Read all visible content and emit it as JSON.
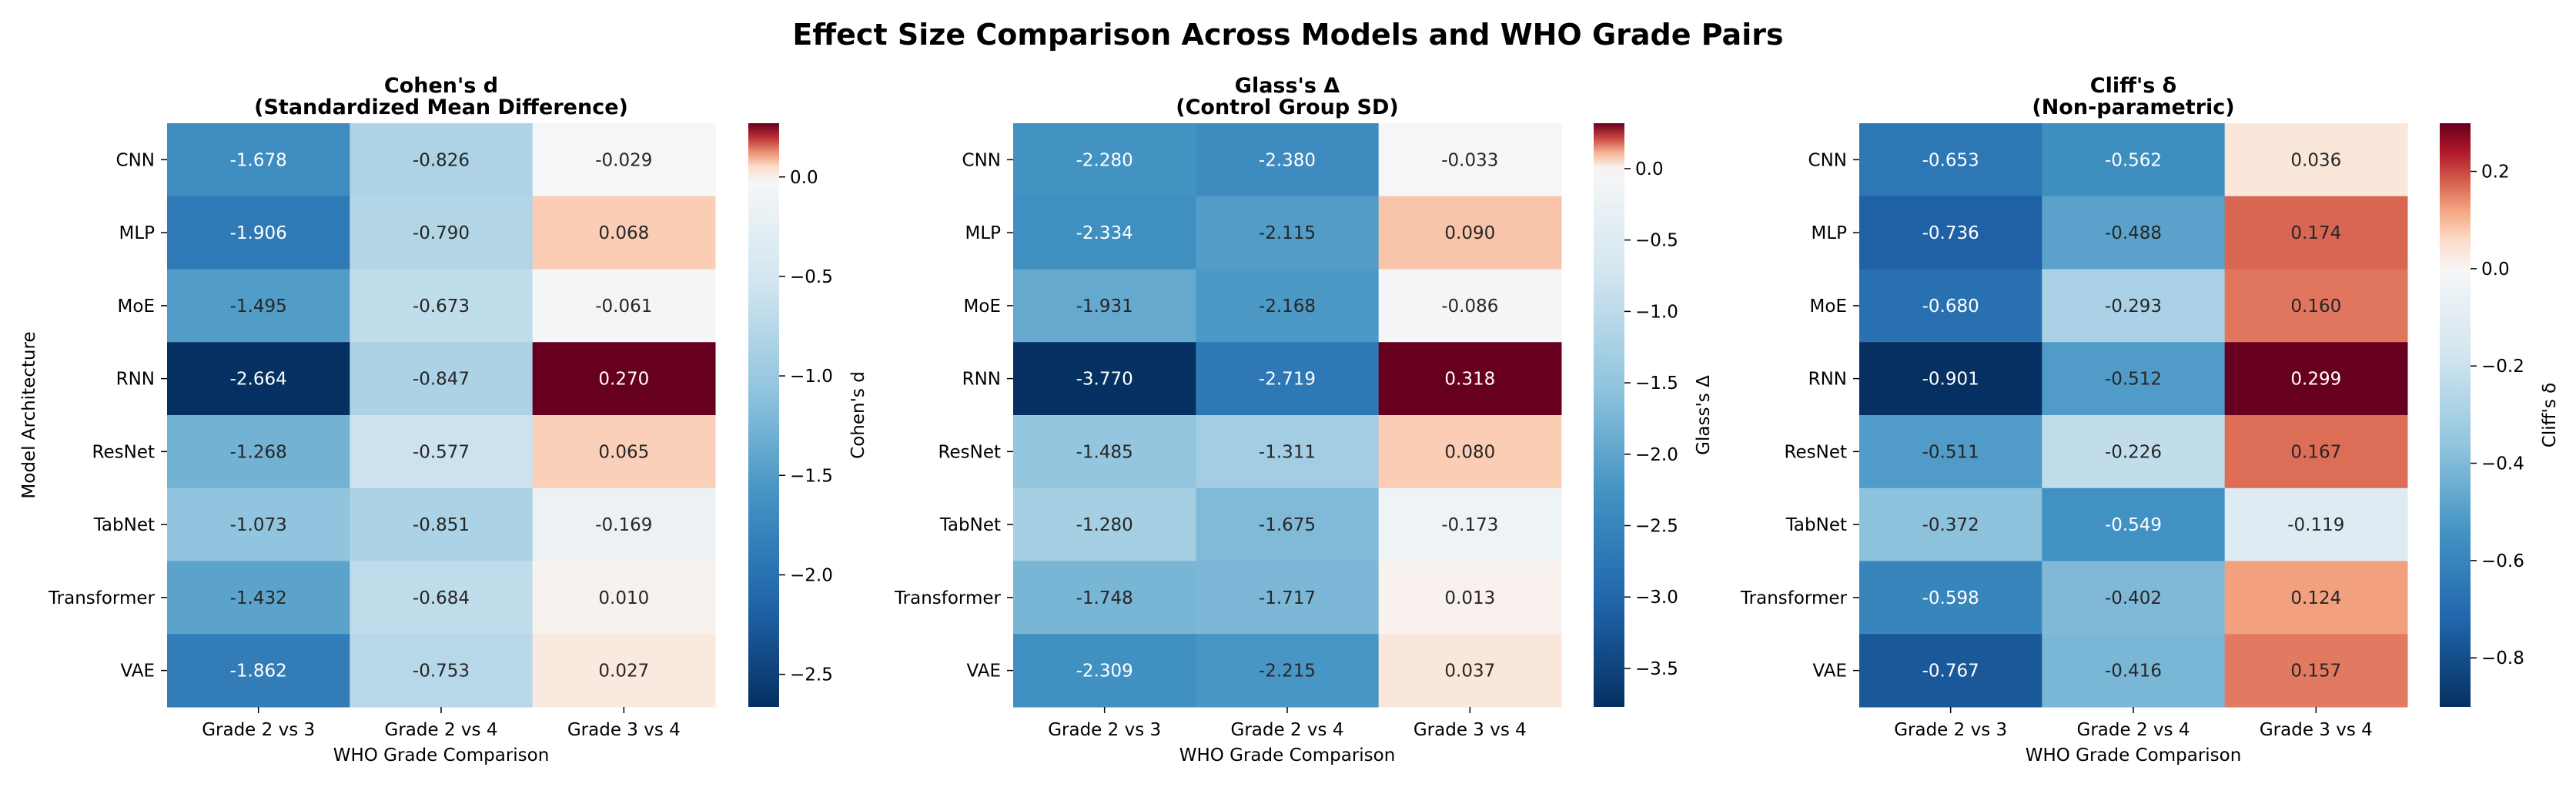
{
  "figure": {
    "suptitle": "Effect Size Comparison Across Models and WHO Grade Pairs"
  },
  "chart_data": [
    {
      "type": "heatmap",
      "title_line1": "Cohen's d",
      "title_line2": "(Standardized Mean Difference)",
      "xlabel": "WHO Grade Comparison",
      "ylabel": "Model Architecture",
      "colorbar_label": "Cohen's d",
      "colormap": "RdBu_r",
      "vmin": -2.664,
      "vmax": 0.27,
      "center": 0,
      "colorbar_ticks": [
        0.0,
        -0.5,
        -1.0,
        -1.5,
        -2.0,
        -2.5
      ],
      "colorbar_tick_labels": [
        "0.0",
        "−0.5",
        "−1.0",
        "−1.5",
        "−2.0",
        "−2.5"
      ],
      "columns": [
        "Grade 2 vs 3",
        "Grade 2 vs 4",
        "Grade 3 vs 4"
      ],
      "rows": [
        "CNN",
        "MLP",
        "MoE",
        "RNN",
        "ResNet",
        "TabNet",
        "Transformer",
        "VAE"
      ],
      "values": [
        [
          -1.678,
          -0.826,
          -0.029
        ],
        [
          -1.906,
          -0.79,
          0.068
        ],
        [
          -1.495,
          -0.673,
          -0.061
        ],
        [
          -2.664,
          -0.847,
          0.27
        ],
        [
          -1.268,
          -0.577,
          0.065
        ],
        [
          -1.073,
          -0.851,
          -0.169
        ],
        [
          -1.432,
          -0.684,
          0.01
        ],
        [
          -1.862,
          -0.753,
          0.027
        ]
      ],
      "labels": [
        [
          "-1.678",
          "-0.826",
          "-0.029"
        ],
        [
          "-1.906",
          "-0.790",
          "0.068"
        ],
        [
          "-1.495",
          "-0.673",
          "-0.061"
        ],
        [
          "-2.664",
          "-0.847",
          "0.270"
        ],
        [
          "-1.268",
          "-0.577",
          "0.065"
        ],
        [
          "-1.073",
          "-0.851",
          "-0.169"
        ],
        [
          "-1.432",
          "-0.684",
          "0.010"
        ],
        [
          "-1.862",
          "-0.753",
          "0.027"
        ]
      ]
    },
    {
      "type": "heatmap",
      "title_line1": "Glass's Δ",
      "title_line2": "(Control Group SD)",
      "xlabel": "WHO Grade Comparison",
      "ylabel": "",
      "colorbar_label": "Glass's Δ",
      "colormap": "RdBu_r",
      "vmin": -3.77,
      "vmax": 0.318,
      "center": 0,
      "colorbar_ticks": [
        0.0,
        -0.5,
        -1.0,
        -1.5,
        -2.0,
        -2.5,
        -3.0,
        -3.5
      ],
      "colorbar_tick_labels": [
        "0.0",
        "−0.5",
        "−1.0",
        "−1.5",
        "−2.0",
        "−2.5",
        "−3.0",
        "−3.5"
      ],
      "columns": [
        "Grade 2 vs 3",
        "Grade 2 vs 4",
        "Grade 3 vs 4"
      ],
      "rows": [
        "CNN",
        "MLP",
        "MoE",
        "RNN",
        "ResNet",
        "TabNet",
        "Transformer",
        "VAE"
      ],
      "values": [
        [
          -2.28,
          -2.38,
          -0.033
        ],
        [
          -2.334,
          -2.115,
          0.09
        ],
        [
          -1.931,
          -2.168,
          -0.086
        ],
        [
          -3.77,
          -2.719,
          0.318
        ],
        [
          -1.485,
          -1.311,
          0.08
        ],
        [
          -1.28,
          -1.675,
          -0.173
        ],
        [
          -1.748,
          -1.717,
          0.013
        ],
        [
          -2.309,
          -2.215,
          0.037
        ]
      ],
      "labels": [
        [
          "-2.280",
          "-2.380",
          "-0.033"
        ],
        [
          "-2.334",
          "-2.115",
          "0.090"
        ],
        [
          "-1.931",
          "-2.168",
          "-0.086"
        ],
        [
          "-3.770",
          "-2.719",
          "0.318"
        ],
        [
          "-1.485",
          "-1.311",
          "0.080"
        ],
        [
          "-1.280",
          "-1.675",
          "-0.173"
        ],
        [
          "-1.748",
          "-1.717",
          "0.013"
        ],
        [
          "-2.309",
          "-2.215",
          "0.037"
        ]
      ]
    },
    {
      "type": "heatmap",
      "title_line1": "Cliff's δ",
      "title_line2": "(Non-parametric)",
      "xlabel": "WHO Grade Comparison",
      "ylabel": "",
      "colorbar_label": "Cliff's δ",
      "colormap": "RdBu_r",
      "vmin": -0.901,
      "vmax": 0.299,
      "center": 0,
      "colorbar_ticks": [
        0.2,
        0.0,
        -0.2,
        -0.4,
        -0.6,
        -0.8
      ],
      "colorbar_tick_labels": [
        "0.2",
        "0.0",
        "−0.2",
        "−0.4",
        "−0.6",
        "−0.8"
      ],
      "columns": [
        "Grade 2 vs 3",
        "Grade 2 vs 4",
        "Grade 3 vs 4"
      ],
      "rows": [
        "CNN",
        "MLP",
        "MoE",
        "RNN",
        "ResNet",
        "TabNet",
        "Transformer",
        "VAE"
      ],
      "values": [
        [
          -0.653,
          -0.562,
          0.036
        ],
        [
          -0.736,
          -0.488,
          0.174
        ],
        [
          -0.68,
          -0.293,
          0.16
        ],
        [
          -0.901,
          -0.512,
          0.299
        ],
        [
          -0.511,
          -0.226,
          0.167
        ],
        [
          -0.372,
          -0.549,
          -0.119
        ],
        [
          -0.598,
          -0.402,
          0.124
        ],
        [
          -0.767,
          -0.416,
          0.157
        ]
      ],
      "labels": [
        [
          "-0.653",
          "-0.562",
          "0.036"
        ],
        [
          "-0.736",
          "-0.488",
          "0.174"
        ],
        [
          "-0.680",
          "-0.293",
          "0.160"
        ],
        [
          "-0.901",
          "-0.512",
          "0.299"
        ],
        [
          "-0.511",
          "-0.226",
          "0.167"
        ],
        [
          "-0.372",
          "-0.549",
          "-0.119"
        ],
        [
          "-0.598",
          "-0.402",
          "0.124"
        ],
        [
          "-0.767",
          "-0.416",
          "0.157"
        ]
      ]
    }
  ]
}
